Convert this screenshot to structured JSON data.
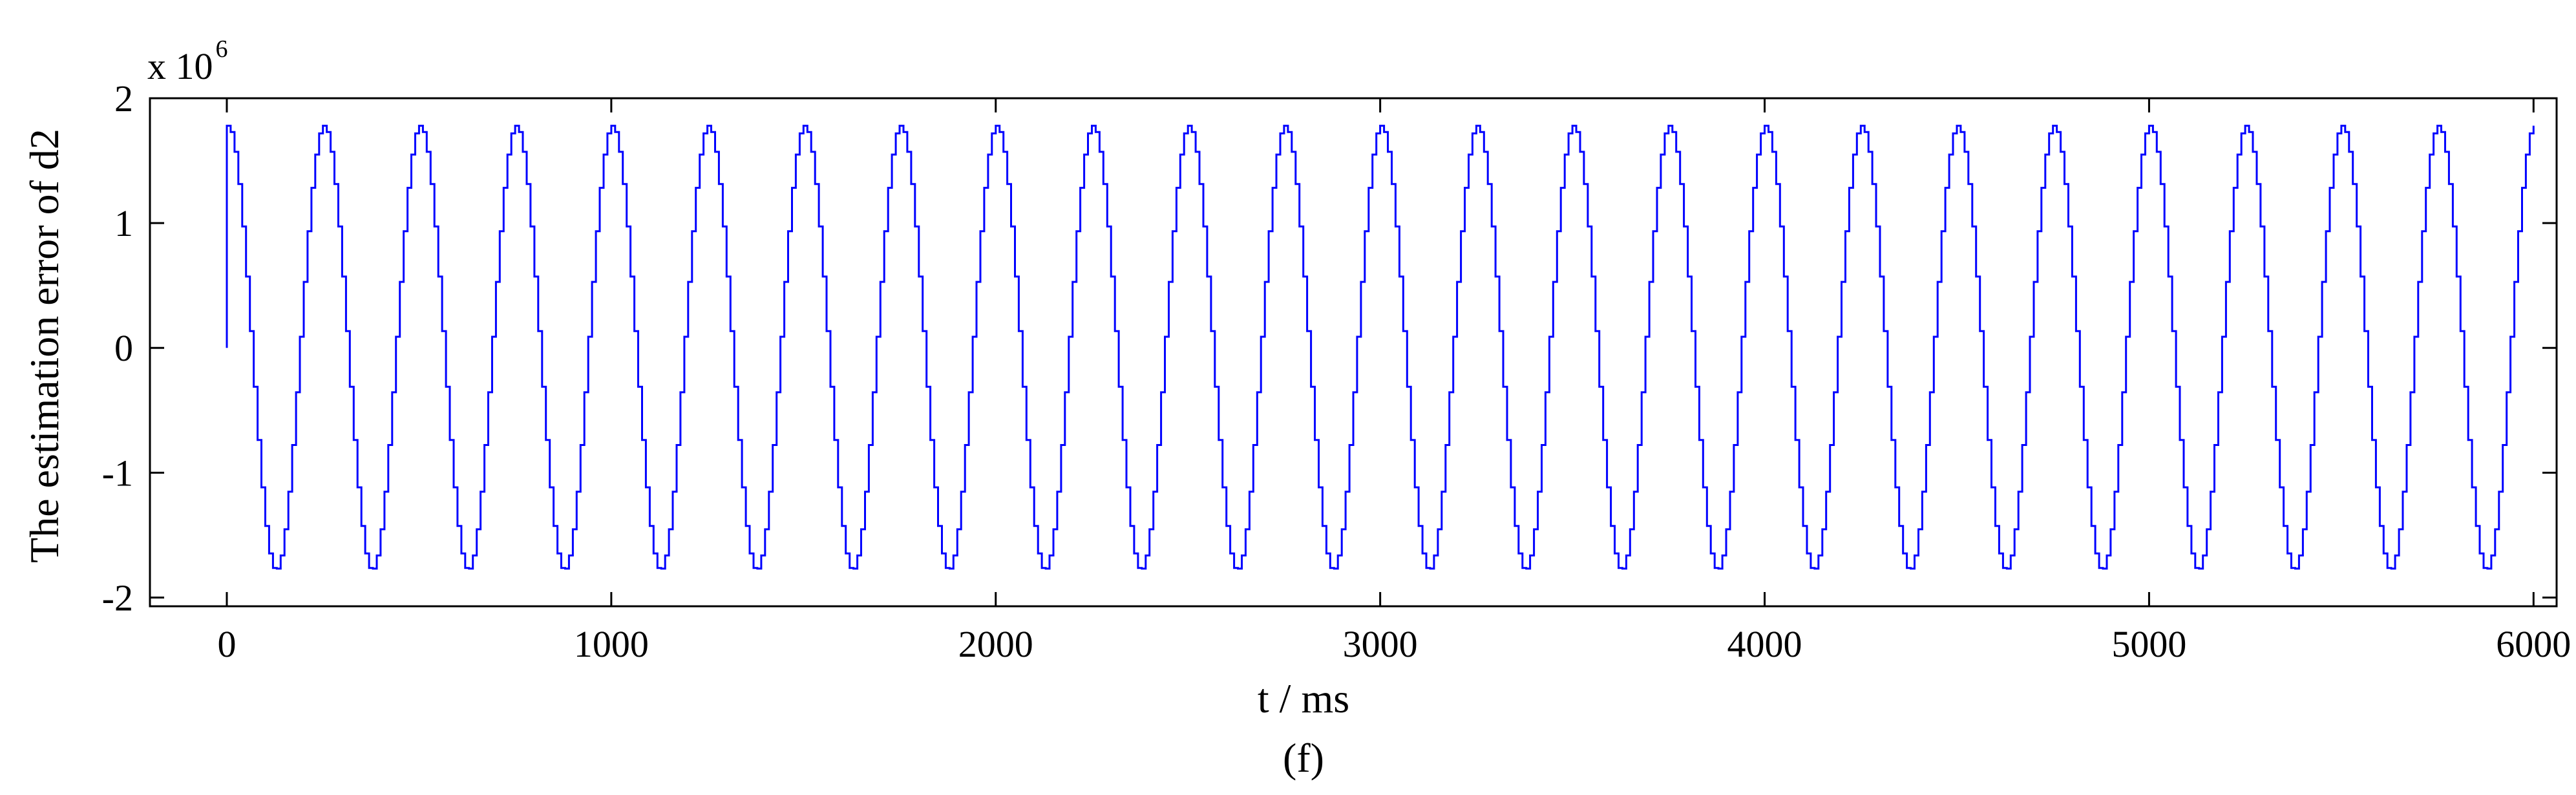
{
  "chart_data": {
    "type": "line",
    "xlabel": "t / ms",
    "ylabel": "The estimation error of d2",
    "caption": "(f)",
    "y_multiplier_prefix": "x 10",
    "y_multiplier_exponent": "6",
    "xlim": [
      -200,
      6060
    ],
    "ylim": [
      -2.07,
      2.0
    ],
    "xticks": [
      0,
      1000,
      2000,
      3000,
      4000,
      5000,
      6000
    ],
    "xtick_labels": [
      "0",
      "1000",
      "2000",
      "3000",
      "4000",
      "5000",
      "6000"
    ],
    "yticks": [
      -2,
      -1,
      0,
      1,
      2
    ],
    "ytick_labels": [
      "-2",
      "-1",
      "0",
      "1",
      "2"
    ],
    "grid": false,
    "legend": "none",
    "series": [
      {
        "color": "#0000ff",
        "model": "staircase sinusoid",
        "initial_value": 0,
        "amplitude": 1.78,
        "period_ms": 250,
        "phase_offset_ms": 62,
        "step_ms": 10,
        "x_start": 0,
        "x_end": 6000
      }
    ]
  }
}
